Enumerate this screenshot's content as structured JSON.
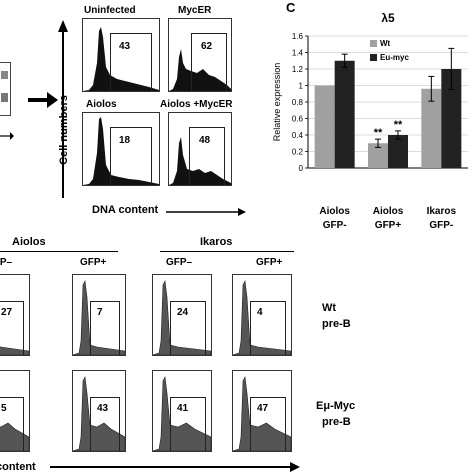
{
  "panel_c_letter": "C",
  "histograms_top": [
    {
      "label": "Uninfected",
      "value": "43",
      "peak": "g1"
    },
    {
      "label": "MycER",
      "value": "62",
      "peak": "broad"
    },
    {
      "label": "Aiolos",
      "value": "18",
      "peak": "g1"
    },
    {
      "label": "Aiolos +MycER",
      "value": "48",
      "peak": "broad"
    }
  ],
  "top_axes": {
    "y_label": "Cell numbers",
    "x_label": "DNA content"
  },
  "bottom": {
    "groups": [
      {
        "label": "Aiolos",
        "subgroups": [
          "GFP–",
          "GFP+"
        ]
      },
      {
        "label": "Ikaros",
        "subgroups": [
          "GFP–",
          "GFP+"
        ]
      }
    ],
    "row_labels": [
      [
        "Wt",
        "pre-B"
      ],
      [
        "Eμ-Myc",
        "pre-B"
      ]
    ],
    "rows": [
      [
        "27",
        "7",
        "24",
        "4"
      ],
      [
        "5",
        "43",
        "41",
        "47"
      ]
    ],
    "x_label": "content"
  },
  "chart_data": {
    "type": "bar",
    "title": "λ5",
    "ylabel": "Relative expression",
    "ylim": [
      0,
      1.6
    ],
    "yticks": [
      "0",
      "0.2",
      "0.4",
      "0.6",
      "0.8",
      "1",
      "1.2",
      "1.4",
      "1.6"
    ],
    "categories": [
      [
        "Aiolos",
        "GFP-"
      ],
      [
        "Aiolos",
        "GFP+"
      ],
      [
        "Ikaros",
        "GFP-"
      ]
    ],
    "series": [
      {
        "name": "Wt",
        "values": [
          1.0,
          0.3,
          0.96
        ],
        "errors": [
          0,
          0.05,
          0.15
        ],
        "color": "#a0a0a0"
      },
      {
        "name": "Eu-myc",
        "values": [
          1.3,
          0.4,
          1.2
        ],
        "errors": [
          0.08,
          0.05,
          0.25
        ],
        "color": "#222222"
      }
    ],
    "annotations": [
      "**",
      "**"
    ],
    "legend": "top-left"
  }
}
